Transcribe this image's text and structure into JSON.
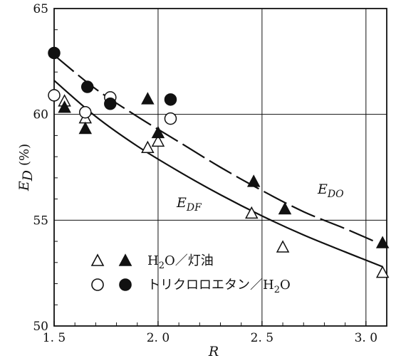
{
  "chart_data": {
    "type": "scatter",
    "xlabel": "R",
    "ylabel_symbol": "E",
    "ylabel_subscript": "D",
    "ylabel_unit": "(%)",
    "xlim": [
      1.5,
      3.1
    ],
    "ylim": [
      50,
      65
    ],
    "x_ticks": [
      1.5,
      2.0,
      2.5,
      3.0
    ],
    "x_tick_labels": [
      "1. 5",
      "2. 0",
      "2. 5",
      "3. 0"
    ],
    "y_ticks": [
      50,
      55,
      60,
      65
    ],
    "y_tick_labels": [
      "50",
      "55",
      "60",
      "65"
    ],
    "grid": true,
    "legend_position": "bottom-left",
    "series": [
      {
        "system": "H2O/kerosene",
        "variable": "E_DF",
        "marker": "open-triangle",
        "points": [
          [
            1.55,
            60.6
          ],
          [
            1.65,
            59.8
          ],
          [
            1.95,
            58.4
          ],
          [
            2.0,
            58.7
          ],
          [
            2.45,
            55.3
          ],
          [
            2.6,
            53.7
          ],
          [
            3.08,
            52.5
          ]
        ]
      },
      {
        "system": "H2O/kerosene",
        "variable": "E_DO",
        "marker": "filled-triangle",
        "points": [
          [
            1.55,
            60.3
          ],
          [
            1.65,
            59.3
          ],
          [
            1.95,
            60.7
          ],
          [
            2.0,
            59.1
          ],
          [
            2.46,
            56.8
          ],
          [
            2.61,
            55.5
          ],
          [
            3.08,
            53.9
          ]
        ]
      },
      {
        "system": "trichloroethane/H2O",
        "variable": "E_DF",
        "marker": "open-circle",
        "points": [
          [
            1.5,
            60.9
          ],
          [
            1.65,
            60.1
          ],
          [
            1.77,
            60.8
          ],
          [
            2.06,
            59.8
          ]
        ]
      },
      {
        "system": "trichloroethane/H2O",
        "variable": "E_DO",
        "marker": "filled-circle",
        "points": [
          [
            1.5,
            62.9
          ],
          [
            1.66,
            61.3
          ],
          [
            1.77,
            60.5
          ],
          [
            2.06,
            60.7
          ]
        ]
      }
    ],
    "fit_curves": [
      {
        "label_symbol": "E",
        "label_subscript": "DF",
        "style": "solid",
        "points": [
          [
            1.5,
            61.6
          ],
          [
            1.7,
            59.9
          ],
          [
            1.9,
            58.5
          ],
          [
            2.1,
            57.3
          ],
          [
            2.3,
            56.2
          ],
          [
            2.5,
            55.2
          ],
          [
            2.7,
            54.3
          ],
          [
            2.9,
            53.5
          ],
          [
            3.08,
            52.8
          ]
        ]
      },
      {
        "label_symbol": "E",
        "label_subscript": "DO",
        "style": "dashed",
        "points": [
          [
            1.5,
            62.8
          ],
          [
            1.7,
            61.2
          ],
          [
            1.9,
            59.9
          ],
          [
            2.1,
            58.7
          ],
          [
            2.3,
            57.5
          ],
          [
            2.5,
            56.4
          ],
          [
            2.7,
            55.4
          ],
          [
            2.9,
            54.6
          ],
          [
            3.04,
            54.0
          ]
        ]
      }
    ],
    "legend": [
      {
        "markers": [
          "open-triangle",
          "filled-triangle"
        ],
        "label_prefix": "H",
        "label_sub": "2",
        "label_suffix": "O／灯油"
      },
      {
        "markers": [
          "open-circle",
          "filled-circle"
        ],
        "label_prefix": "トリクロロエタン／H",
        "label_sub": "2",
        "label_suffix": "O"
      }
    ]
  }
}
